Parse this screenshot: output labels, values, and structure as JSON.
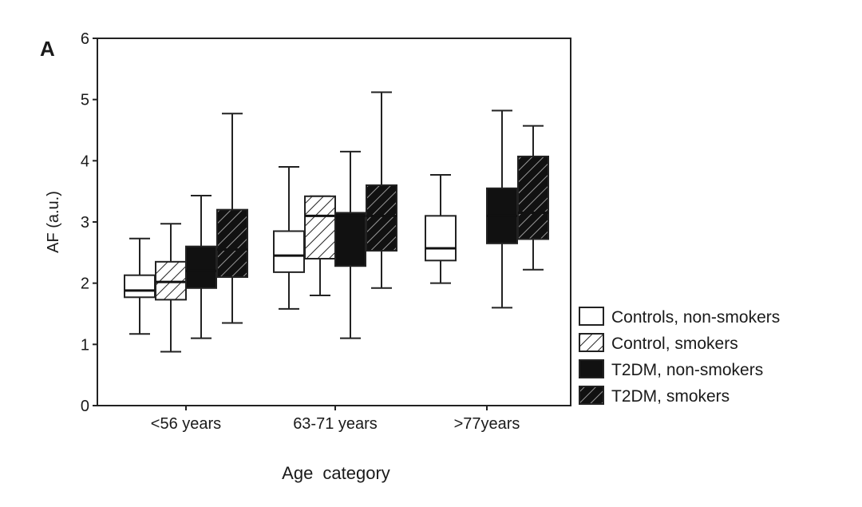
{
  "chart_data": {
    "type": "box",
    "panel_label": "A",
    "xlabel": "Age category",
    "ylabel": "AF (a.u.)",
    "ylim": [
      0,
      6
    ],
    "yticks": [
      0,
      1,
      2,
      3,
      4,
      5,
      6
    ],
    "categories": [
      "<56 years",
      "63-71 years",
      ">77years"
    ],
    "legend_position": "right-bottom",
    "series": [
      {
        "name": "Controls, non-smokers",
        "fill": "white",
        "boxes": [
          {
            "category": "<56 years",
            "min": 1.17,
            "q1": 1.77,
            "median": 1.88,
            "q3": 2.13,
            "max": 2.73
          },
          {
            "category": "63-71 years",
            "min": 1.58,
            "q1": 2.18,
            "median": 2.45,
            "q3": 2.85,
            "max": 3.9
          },
          {
            "category": ">77years",
            "min": 2.0,
            "q1": 2.37,
            "median": 2.57,
            "q3": 3.1,
            "max": 3.77
          }
        ]
      },
      {
        "name": "Control, smokers",
        "fill": "white-hatched",
        "boxes": [
          {
            "category": "<56 years",
            "min": 0.88,
            "q1": 1.73,
            "median": 2.02,
            "q3": 2.35,
            "max": 2.97
          },
          {
            "category": "63-71 years",
            "min": 1.8,
            "q1": 2.4,
            "median": 3.1,
            "q3": 3.42,
            "max": 3.42
          }
        ]
      },
      {
        "name": "T2DM, non-smokers",
        "fill": "black",
        "boxes": [
          {
            "category": "<56 years",
            "min": 1.1,
            "q1": 1.92,
            "median": 2.2,
            "q3": 2.6,
            "max": 3.43
          },
          {
            "category": "63-71 years",
            "min": 1.1,
            "q1": 2.28,
            "median": 3.1,
            "q3": 3.15,
            "max": 4.15
          },
          {
            "category": ">77years",
            "min": 1.6,
            "q1": 2.65,
            "median": 3.1,
            "q3": 3.55,
            "max": 4.82
          }
        ]
      },
      {
        "name": "T2DM, smokers",
        "fill": "black-hatched",
        "boxes": [
          {
            "category": "<56 years",
            "min": 1.35,
            "q1": 2.1,
            "median": 2.55,
            "q3": 3.2,
            "max": 4.77
          },
          {
            "category": "63-71 years",
            "min": 1.92,
            "q1": 2.53,
            "median": 3.1,
            "q3": 3.6,
            "max": 5.12
          },
          {
            "category": ">77years",
            "min": 2.22,
            "q1": 2.72,
            "median": 3.15,
            "q3": 4.07,
            "max": 4.57
          }
        ]
      }
    ]
  }
}
